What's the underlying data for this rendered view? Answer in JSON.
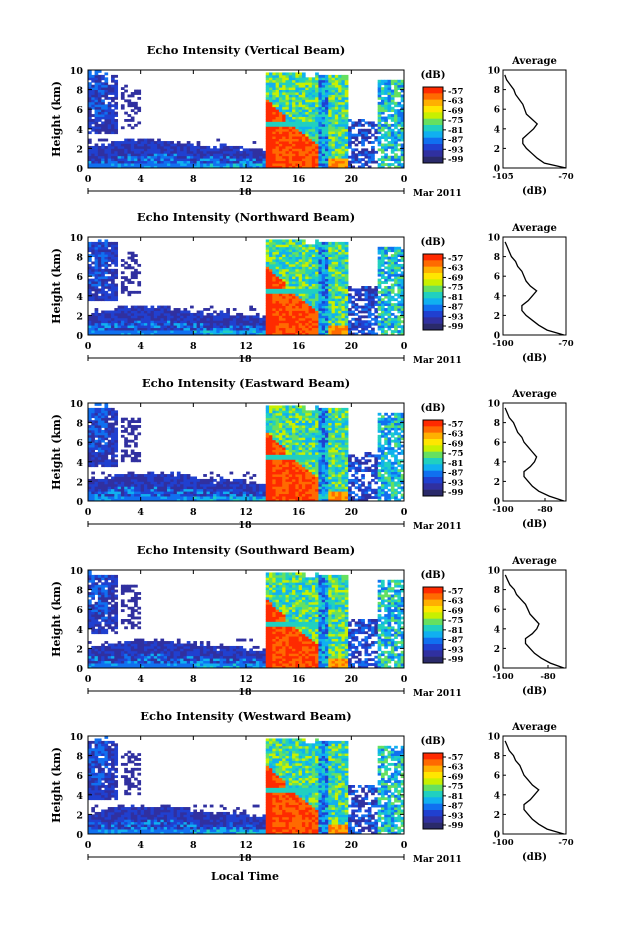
{
  "figure": {
    "bottom_xlabel": "Local Time",
    "colorbar_unit": "(dB)",
    "colorbar_ticks": [
      "-57",
      "-63",
      "-69",
      "-75",
      "-81",
      "-87",
      "-93",
      "-99"
    ],
    "colorbar_colors": [
      "#ff2a00",
      "#ff6a00",
      "#ffb000",
      "#ffe600",
      "#c8f000",
      "#66e060",
      "#20d0c0",
      "#10b0f0",
      "#1070f0",
      "#2040d0",
      "#3030a0",
      "#2a2a6a"
    ],
    "x_ticks": [
      "0",
      "4",
      "8",
      "12",
      "16",
      "20",
      "0"
    ],
    "y_ticks": [
      "0",
      "2",
      "4",
      "6",
      "8",
      "10"
    ],
    "ylabel": "Height (km)",
    "date_label": "Mar 2011",
    "avg_title": "Average",
    "avg_xlabel": "(dB)"
  },
  "chart_data": [
    {
      "type": "heatmap",
      "title": "Echo Intensity (Vertical Beam)",
      "xlabel": "Local Time",
      "ylabel": "Height (km)",
      "day_label": "18",
      "xlim": [
        0,
        24
      ],
      "ylim": [
        0,
        10
      ],
      "color_scale_db": [
        -99,
        -57
      ],
      "average_profile": {
        "title": "Average",
        "xlabel": "(dB)",
        "xticks": [
          "-105",
          "-70"
        ],
        "xlim": [
          -105,
          -70
        ],
        "heights": [
          0,
          0.5,
          1,
          1.5,
          2,
          2.5,
          3,
          3.5,
          4,
          4.5,
          5,
          5.5,
          6,
          6.5,
          7,
          7.5,
          8,
          8.5,
          9,
          9.5
        ],
        "values": [
          -70,
          -82,
          -86,
          -89,
          -92,
          -94,
          -94,
          -91,
          -88,
          -86,
          -89,
          -92,
          -93,
          -94,
          -96,
          -98,
          -99,
          -101,
          -103,
          -104
        ]
      }
    },
    {
      "type": "heatmap",
      "title": "Echo Intensity (Northward Beam)",
      "xlabel": "Local Time",
      "ylabel": "Height (km)",
      "day_label": "18",
      "xlim": [
        0,
        24
      ],
      "ylim": [
        0,
        10
      ],
      "color_scale_db": [
        -99,
        -57
      ],
      "average_profile": {
        "title": "Average",
        "xlabel": "(dB)",
        "xticks": [
          "-100",
          "-70"
        ],
        "xlim": [
          -100,
          -70
        ],
        "heights": [
          0,
          0.5,
          1,
          1.5,
          2,
          2.5,
          3,
          3.5,
          4,
          4.5,
          5,
          5.5,
          6,
          6.5,
          7,
          7.5,
          8,
          8.5,
          9,
          9.5
        ],
        "values": [
          -71,
          -79,
          -83,
          -86,
          -89,
          -91,
          -91,
          -88,
          -86,
          -84,
          -87,
          -89,
          -90,
          -91,
          -93,
          -94,
          -96,
          -97,
          -98,
          -99
        ]
      }
    },
    {
      "type": "heatmap",
      "title": "Echo Intensity (Eastward Beam)",
      "xlabel": "Local Time",
      "ylabel": "Height (km)",
      "day_label": "18",
      "xlim": [
        0,
        24
      ],
      "ylim": [
        0,
        10
      ],
      "color_scale_db": [
        -99,
        -57
      ],
      "average_profile": {
        "title": "Average",
        "xlabel": "(dB)",
        "xticks": [
          "-100",
          "-80"
        ],
        "xlim": [
          -100,
          -70
        ],
        "heights": [
          0,
          0.5,
          1,
          1.5,
          2,
          2.5,
          3,
          3.5,
          4,
          4.5,
          5,
          5.5,
          6,
          6.5,
          7,
          7.5,
          8,
          8.5,
          9,
          9.5
        ],
        "values": [
          -71,
          -78,
          -83,
          -86,
          -88,
          -90,
          -90,
          -87,
          -85,
          -84,
          -86,
          -88,
          -90,
          -91,
          -93,
          -94,
          -95,
          -97,
          -98,
          -99
        ]
      }
    },
    {
      "type": "heatmap",
      "title": "Echo Intensity (Southward Beam)",
      "xlabel": "Local Time",
      "ylabel": "Height (km)",
      "day_label": "18",
      "xlim": [
        0,
        24
      ],
      "ylim": [
        0,
        10
      ],
      "color_scale_db": [
        -99,
        -57
      ],
      "average_profile": {
        "title": "Average",
        "xlabel": "(dB)",
        "xticks": [
          "-100",
          "-80"
        ],
        "xlim": [
          -100,
          -72
        ],
        "heights": [
          0,
          0.5,
          1,
          1.5,
          2,
          2.5,
          3,
          3.5,
          4,
          4.5,
          5,
          5.5,
          6,
          6.5,
          7,
          7.5,
          8,
          8.5,
          9,
          9.5
        ],
        "values": [
          -73,
          -79,
          -83,
          -86,
          -88,
          -90,
          -90,
          -87,
          -85,
          -84,
          -86,
          -88,
          -89,
          -90,
          -92,
          -94,
          -95,
          -97,
          -98,
          -99
        ]
      }
    },
    {
      "type": "heatmap",
      "title": "Echo Intensity (Westward Beam)",
      "xlabel": "Local Time",
      "ylabel": "Height (km)",
      "day_label": "18",
      "xlim": [
        0,
        24
      ],
      "ylim": [
        0,
        10
      ],
      "color_scale_db": [
        -99,
        -57
      ],
      "average_profile": {
        "title": "Average",
        "xlabel": "(dB)",
        "xticks": [
          "-100",
          "-70"
        ],
        "xlim": [
          -100,
          -70
        ],
        "heights": [
          0,
          0.5,
          1,
          1.5,
          2,
          2.5,
          3,
          3.5,
          4,
          4.5,
          5,
          5.5,
          6,
          6.5,
          7,
          7.5,
          8,
          8.5,
          9,
          9.5
        ],
        "values": [
          -71,
          -79,
          -83,
          -86,
          -88,
          -90,
          -90,
          -87,
          -85,
          -83,
          -86,
          -88,
          -90,
          -91,
          -92,
          -94,
          -95,
          -97,
          -98,
          -99
        ]
      }
    }
  ]
}
